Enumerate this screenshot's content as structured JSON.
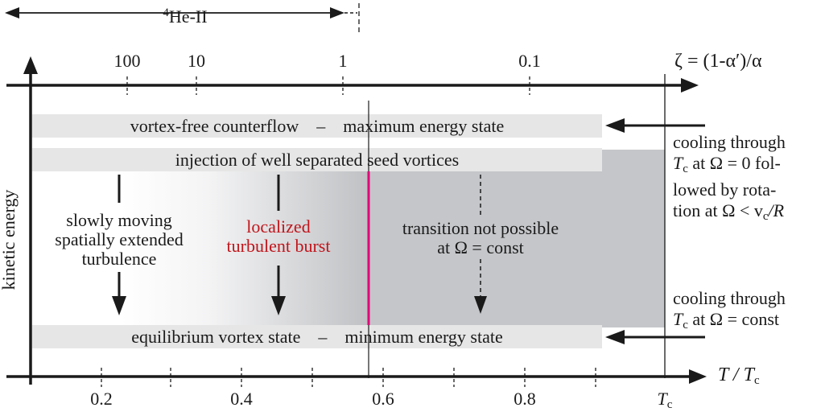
{
  "diagram": {
    "top_span_label": "4He-II",
    "top_span_sup": "4",
    "top_span_rest": "He-II",
    "zeta_label": "ζ = (1-α′)/α",
    "zeta_ticks": [
      "100",
      "10",
      "1",
      "0.1"
    ],
    "bottom_ticks": [
      "0.2",
      "0.4",
      "0.6",
      "0.8"
    ],
    "tc_tick_main": "T",
    "tc_tick_sub": "c",
    "x_axis_label_main": "T / T",
    "x_axis_label_sub": "c",
    "y_axis_label": "kinetic energy",
    "bands": {
      "top": "vortex-free counterflow    –    maximum energy state",
      "injection": "injection of well separated seed vortices",
      "bottom": "equilibrium vortex state    –    minimum energy state"
    },
    "left_text": [
      "slowly moving",
      "spatially extended",
      "turbulence"
    ],
    "middle_text": [
      "localized",
      "turbulent burst"
    ],
    "right_text": [
      "transition not possible",
      "at Ω = const"
    ],
    "side_note_1": [
      "cooling through",
      "T",
      "c",
      " at Ω = 0 fol-",
      "lowed by rota-",
      "tion at Ω < v",
      "c",
      "/R"
    ],
    "side_note_2": [
      "cooling through",
      "T",
      "c",
      " at Ω = const"
    ],
    "colors": {
      "band": "#e6e6e6",
      "shaded_region": "#c4c6c9",
      "critical_line": "#e0007a",
      "highlight_text": "#c0141a",
      "ink": "#1a1a1a"
    }
  }
}
